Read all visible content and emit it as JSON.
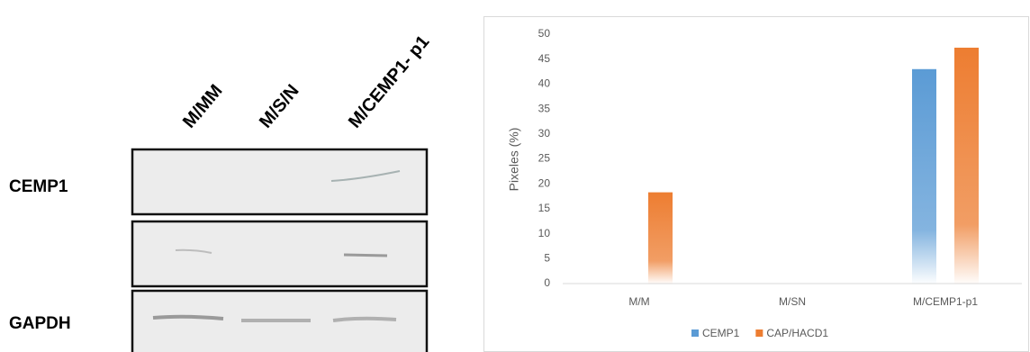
{
  "blot": {
    "lanes": [
      "M/MM",
      "M/S/N",
      "M/CEMP1- p1"
    ],
    "rows": [
      "CEMP1",
      "GAPDH"
    ]
  },
  "chart_data": {
    "type": "bar",
    "y_label": "Pixeles (%)",
    "categories": [
      "M/M",
      "M/SN",
      "M/CEMP1-p1"
    ],
    "series": [
      {
        "name": "CEMP1",
        "color": "#5b9bd5",
        "values": [
          0,
          0,
          43
        ]
      },
      {
        "name": "CAP/HACD1",
        "color": "#ed7d31",
        "values": [
          18.3,
          0,
          47.3
        ]
      }
    ],
    "ylim": [
      0,
      50
    ],
    "yticks": [
      0,
      5,
      10,
      15,
      20,
      25,
      30,
      35,
      40,
      45,
      50
    ],
    "legend": "bottom"
  }
}
